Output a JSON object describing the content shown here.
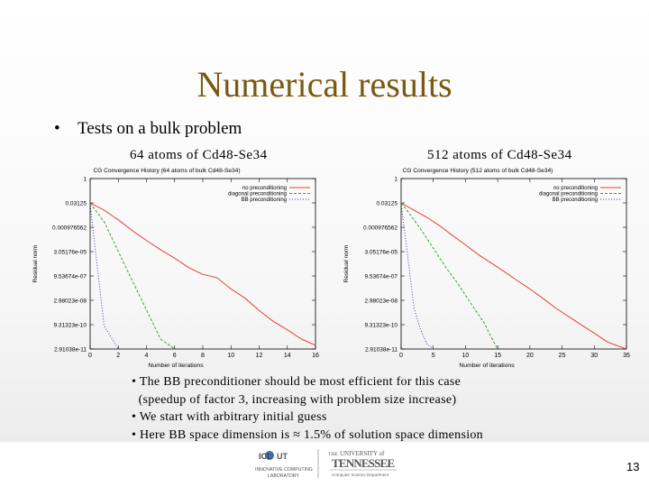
{
  "slide": {
    "title": "Numerical results",
    "bullet": "Tests on a bulk problem",
    "captions": [
      "64 atoms of Cd48-Se34",
      "512 atoms of Cd48-Se34"
    ],
    "notes": [
      "• The BB preconditioner should be most efficient for this case",
      "  (speedup of factor 3, increasing with problem size increase)",
      "• We start with arbitrary initial guess",
      "• Here BB space dimension is ≈ 1.5% of solution space dimension"
    ],
    "page_number": "13",
    "logos": {
      "icl_top": "ICL",
      "icl_ut": "UT",
      "icl_line1": "INNOVATIVE COMPUTING",
      "icl_line2": "LABORATORY",
      "ut_the": "THE",
      "ut_university": "UNIVERSITY of",
      "ut_state": "TENNESSEE",
      "ut_dept": "Computer Science Department"
    }
  },
  "chart_data": [
    {
      "type": "line",
      "title": "CG Convergence History (64 atoms of bulk Cd48-Se34)",
      "xlabel": "Number of iterations",
      "ylabel": "Residual norm",
      "y_scale": "log",
      "xlim": [
        0,
        16
      ],
      "x_ticks": [
        0,
        2,
        4,
        6,
        8,
        10,
        12,
        14,
        16
      ],
      "y_tick_labels": [
        "1",
        "0.03125",
        "0.000976562",
        "3.05176e-05",
        "9.53674e-07",
        "2.98023e-08",
        "9.31323e-10",
        "2.91038e-11"
      ],
      "legend_position": "top-right",
      "series": [
        {
          "name": "no preconditioning",
          "color": "#e0433b",
          "dash": "",
          "x": [
            0,
            1,
            2,
            3,
            4,
            5,
            6,
            7,
            8,
            9,
            10,
            11,
            12,
            13,
            14,
            15,
            16
          ],
          "y": [
            0.031,
            0.011,
            0.0028,
            0.0006,
            0.00015,
            4e-05,
            1.2e-05,
            3.1e-06,
            1.2e-06,
            7.5e-07,
            1.5e-07,
            4e-08,
            7e-09,
            1.5e-09,
            4.5e-10,
            1.2e-10,
            5e-11
          ]
        },
        {
          "name": "diagonal preconditioning",
          "color": "#2fa82f",
          "dash": "3,2",
          "x": [
            0,
            1,
            2,
            3,
            4,
            5,
            6
          ],
          "y": [
            0.031,
            0.0021,
            3.1e-05,
            4.7e-07,
            7.5e-09,
            1.2e-10,
            3e-11
          ]
        },
        {
          "name": "BB preconditioning",
          "color": "#3a3aa8",
          "dash": "1,2",
          "x": [
            0,
            0.5,
            1,
            2
          ],
          "y": [
            0.031,
            4e-06,
            7.5e-10,
            3e-11
          ]
        }
      ]
    },
    {
      "type": "line",
      "title": "CG Convergence History (512 atoms of bulk Cd48-Se34)",
      "xlabel": "Number of iterations",
      "ylabel": "Residual norm",
      "y_scale": "log",
      "xlim": [
        0,
        35
      ],
      "x_ticks": [
        0,
        5,
        10,
        15,
        20,
        25,
        30,
        35
      ],
      "y_tick_labels": [
        "1",
        "0.03125",
        "0.000976562",
        "3.05176e-05",
        "9.53674e-07",
        "2.98023e-08",
        "9.31323e-10",
        "2.91038e-11"
      ],
      "legend_position": "top-right",
      "series": [
        {
          "name": "no preconditioning",
          "color": "#e0433b",
          "dash": "",
          "x": [
            0,
            2,
            4,
            6,
            8,
            10,
            12,
            14,
            16,
            18,
            20,
            22,
            24,
            26,
            28,
            30,
            32,
            34,
            35
          ],
          "y": [
            0.031,
            0.011,
            0.004,
            0.0012,
            0.0003,
            8e-05,
            2e-05,
            6e-06,
            1.8e-06,
            5e-07,
            1.5e-07,
            4e-08,
            1e-08,
            3e-09,
            9e-10,
            2.8e-10,
            8e-11,
            4e-11,
            3e-11
          ]
        },
        {
          "name": "diagonal preconditioning",
          "color": "#2fa82f",
          "dash": "3,2",
          "x": [
            0,
            1,
            2,
            3,
            4,
            5,
            6,
            7,
            8,
            9,
            10,
            11,
            12,
            13,
            14,
            15
          ],
          "y": [
            0.031,
            0.01,
            0.0028,
            0.0008,
            0.0002,
            5e-05,
            1.2e-05,
            3e-06,
            9e-07,
            2.5e-07,
            6e-08,
            1.5e-08,
            4e-09,
            1e-09,
            1.5e-10,
            3e-11
          ]
        },
        {
          "name": "BB preconditioning",
          "color": "#3a3aa8",
          "dash": "1,2",
          "x": [
            0,
            1,
            2,
            3,
            4,
            5
          ],
          "y": [
            0.031,
            2e-05,
            1e-08,
            5e-10,
            6e-11,
            3e-11
          ]
        }
      ]
    }
  ]
}
